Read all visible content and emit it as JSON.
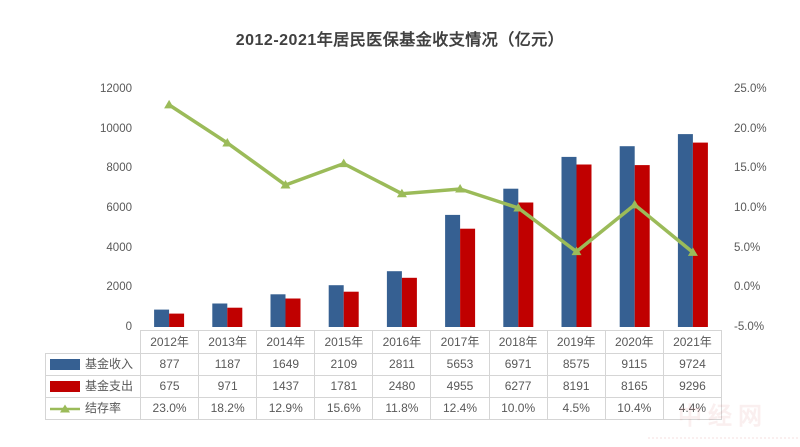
{
  "title": "2012-2021年居民医保基金收支情况（亿元）",
  "watermark": "中经网",
  "colors": {
    "income": "#366092",
    "expense": "#C00000",
    "rate": "#9BBB59",
    "title_text": "#404040",
    "axis_text": "#595959",
    "table_border": "#d5d5d5"
  },
  "chart_data": {
    "type": "bar",
    "subtype": "grouped bars with overlaid line on secondary axis, data table below",
    "title": "2012-2021年居民医保基金收支情况（亿元）",
    "categories": [
      "2012年",
      "2013年",
      "2014年",
      "2015年",
      "2016年",
      "2017年",
      "2018年",
      "2019年",
      "2020年",
      "2021年"
    ],
    "series": [
      {
        "name": "基金收入",
        "type": "bar",
        "axis": "left",
        "color_key": "income",
        "values": [
          877,
          1187,
          1649,
          2109,
          2811,
          5653,
          6971,
          8575,
          9115,
          9724
        ],
        "display": [
          "877",
          "1187",
          "1649",
          "2109",
          "2811",
          "5653",
          "6971",
          "8575",
          "9115",
          "9724"
        ]
      },
      {
        "name": "基金支出",
        "type": "bar",
        "axis": "left",
        "color_key": "expense",
        "values": [
          675,
          971,
          1437,
          1781,
          2480,
          4955,
          6277,
          8191,
          8165,
          9296
        ],
        "display": [
          "675",
          "971",
          "1437",
          "1781",
          "2480",
          "4955",
          "6277",
          "8191",
          "8165",
          "9296"
        ]
      },
      {
        "name": "结存率",
        "type": "line",
        "axis": "right",
        "color_key": "rate",
        "values": [
          23.0,
          18.2,
          12.9,
          15.6,
          11.8,
          12.4,
          10.0,
          4.5,
          10.4,
          4.4
        ],
        "display": [
          "23.0%",
          "18.2%",
          "12.9%",
          "15.6%",
          "11.8%",
          "12.4%",
          "10.0%",
          "4.5%",
          "10.4%",
          "4.4%"
        ]
      }
    ],
    "y_left": {
      "min": 0,
      "max": 12000,
      "ticks": [
        "0",
        "2000",
        "4000",
        "6000",
        "8000",
        "10000",
        "12000"
      ]
    },
    "y_right": {
      "min": -5,
      "max": 25,
      "ticks": [
        "-5.0%",
        "0.0%",
        "5.0%",
        "10.0%",
        "15.0%",
        "20.0%",
        "25.0%"
      ]
    },
    "grid": false,
    "legend_position": "table-left-column"
  }
}
